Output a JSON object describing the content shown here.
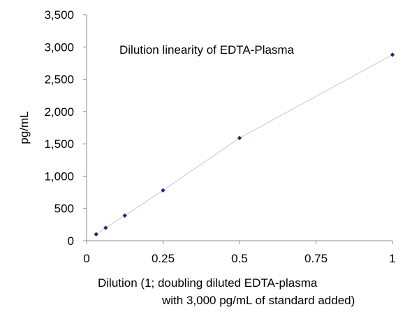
{
  "chart_data": {
    "type": "scatter",
    "title": "Dilution linearity of EDTA-Plasma",
    "xlabel_line1": "Dilution (1; doubling diluted EDTA-plasma",
    "xlabel_line2": "with 3,000 pg/mL of standard added)",
    "ylabel": "pg/mL",
    "xlim": [
      0,
      1
    ],
    "ylim": [
      0,
      3500
    ],
    "xticks": [
      0,
      0.25,
      0.5,
      0.75,
      1
    ],
    "xtick_labels": [
      "0",
      "0.25",
      "0.5",
      "0.75",
      "1"
    ],
    "yticks": [
      0,
      500,
      1000,
      1500,
      2000,
      2500,
      3000,
      3500
    ],
    "ytick_labels": [
      "0",
      "500",
      "1,000",
      "1,500",
      "2,000",
      "2,500",
      "3,000",
      "3,500"
    ],
    "grid": false,
    "legend": "none",
    "series": [
      {
        "x": [
          0.03125,
          0.0625,
          0.125,
          0.25,
          0.5,
          1
        ],
        "y": [
          100,
          200,
          390,
          780,
          1590,
          2880
        ],
        "marker_color": "#1f2a6b",
        "line_color": "#c8c8c8"
      }
    ]
  }
}
